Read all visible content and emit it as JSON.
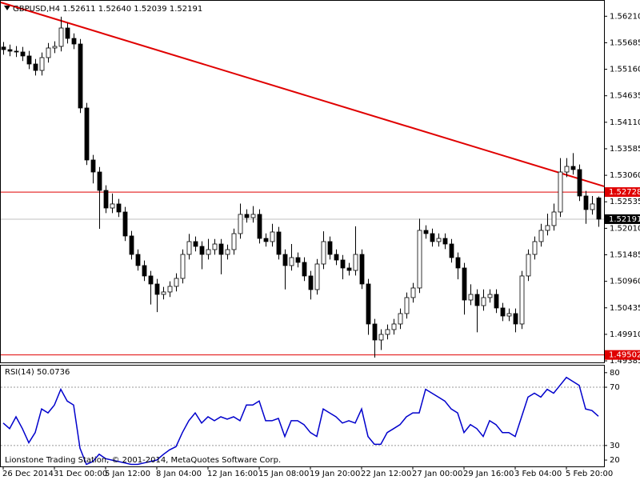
{
  "chart_data": [
    {
      "type": "candlestick",
      "title": "GBPUSD,H4  1.52611 1.52640 1.52039 1.52191",
      "categories": [
        "26 Dec 2014",
        null,
        null,
        null,
        null,
        null,
        null,
        null,
        "31 Dec 00:00",
        null,
        null,
        null,
        null,
        null,
        null,
        null,
        "5 Jan 12:00",
        null,
        null,
        null,
        null,
        null,
        null,
        null,
        "8 Jan 04:00",
        null,
        null,
        null,
        null,
        null,
        null,
        null,
        "12 Jan 16:00",
        null,
        null,
        null,
        null,
        null,
        null,
        null,
        "15 Jan 08:00",
        null,
        null,
        null,
        null,
        null,
        null,
        null,
        "19 Jan 20:00",
        null,
        null,
        null,
        null,
        null,
        null,
        null,
        "22 Jan 12:00",
        null,
        null,
        null,
        null,
        null,
        null,
        null,
        "27 Jan 00:00",
        null,
        null,
        null,
        null,
        null,
        null,
        null,
        "29 Jan 16:00",
        null,
        null,
        null,
        null,
        null,
        null,
        null,
        "3 Feb 04:00",
        null,
        null,
        null,
        null,
        null,
        null,
        null,
        "5 Feb 20:00",
        null,
        null,
        null,
        null,
        null
      ],
      "ohlc": [
        [
          1.556,
          1.557,
          1.55449,
          1.55549
        ],
        [
          1.55549,
          1.55649,
          1.55418,
          1.55518
        ],
        [
          1.55518,
          1.55618,
          1.55402,
          1.55502
        ],
        [
          1.55502,
          1.55602,
          1.55323,
          1.55423
        ],
        [
          1.55423,
          1.55523,
          1.55164,
          1.55264
        ],
        [
          1.55264,
          1.55364,
          1.55037,
          1.55137
        ],
        [
          1.55137,
          1.55491,
          1.55037,
          1.55391
        ],
        [
          1.55391,
          1.55681,
          1.55291,
          1.55581
        ],
        [
          1.55581,
          1.55713,
          1.55481,
          1.55613
        ],
        [
          1.55613,
          1.562,
          1.55513,
          1.55977
        ],
        [
          1.55977,
          1.56077,
          1.55671,
          1.55771
        ],
        [
          1.55771,
          1.55871,
          1.5556,
          1.5566
        ],
        [
          1.5566,
          1.5576,
          1.54293,
          1.54393
        ],
        [
          1.54393,
          1.54493,
          1.53263,
          1.53363
        ],
        [
          1.53363,
          1.53463,
          1.529,
          1.53125
        ],
        [
          1.53125,
          1.53225,
          1.52,
          1.52761
        ],
        [
          1.52761,
          1.52861,
          1.52312,
          1.52412
        ],
        [
          1.52412,
          1.527,
          1.52312,
          1.52492
        ],
        [
          1.52492,
          1.52592,
          1.52233,
          1.52333
        ],
        [
          1.52333,
          1.52433,
          1.51758,
          1.51858
        ],
        [
          1.51858,
          1.51958,
          1.51393,
          1.51493
        ],
        [
          1.51493,
          1.51593,
          1.51172,
          1.51272
        ],
        [
          1.51272,
          1.51372,
          1.50966,
          1.51066
        ],
        [
          1.51066,
          1.51166,
          1.505,
          1.50907
        ],
        [
          1.50907,
          1.51007,
          1.5035,
          1.50701
        ],
        [
          1.50701,
          1.50849,
          1.50601,
          1.50749
        ],
        [
          1.50749,
          1.5096,
          1.50649,
          1.5086
        ],
        [
          1.5086,
          1.51118,
          1.5076,
          1.51018
        ],
        [
          1.51018,
          1.51593,
          1.50918,
          1.51493
        ],
        [
          1.51493,
          1.519,
          1.51393,
          1.51747
        ],
        [
          1.51747,
          1.51847,
          1.51552,
          1.51652
        ],
        [
          1.51652,
          1.51752,
          1.512,
          1.51493
        ],
        [
          1.51493,
          1.518,
          1.51393,
          1.51588
        ],
        [
          1.51588,
          1.51799,
          1.51488,
          1.51699
        ],
        [
          1.51699,
          1.51799,
          1.511,
          1.51493
        ],
        [
          1.51493,
          1.51688,
          1.51393,
          1.51588
        ],
        [
          1.51588,
          1.52005,
          1.51488,
          1.51905
        ],
        [
          1.51905,
          1.525,
          1.51805,
          1.52286
        ],
        [
          1.52286,
          1.52386,
          1.52122,
          1.52222
        ],
        [
          1.52222,
          1.5245,
          1.52122,
          1.52286
        ],
        [
          1.52286,
          1.52386,
          1.5171,
          1.5181
        ],
        [
          1.5181,
          1.5191,
          1.51647,
          1.51747
        ],
        [
          1.51747,
          1.521,
          1.51647,
          1.51937
        ],
        [
          1.51937,
          1.52037,
          1.51393,
          1.51493
        ],
        [
          1.51493,
          1.51593,
          1.508,
          1.51272
        ],
        [
          1.51272,
          1.517,
          1.51172,
          1.5143
        ],
        [
          1.5143,
          1.5153,
          1.51235,
          1.51335
        ],
        [
          1.51335,
          1.51435,
          1.50966,
          1.51066
        ],
        [
          1.51066,
          1.51166,
          1.506,
          1.50796
        ],
        [
          1.50796,
          1.51403,
          1.50696,
          1.51303
        ],
        [
          1.51303,
          1.5195,
          1.51203,
          1.51747
        ],
        [
          1.51747,
          1.51847,
          1.51393,
          1.51493
        ],
        [
          1.51493,
          1.51593,
          1.51282,
          1.51382
        ],
        [
          1.51382,
          1.51482,
          1.51,
          1.51224
        ],
        [
          1.51224,
          1.51324,
          1.51076,
          1.51176
        ],
        [
          1.51176,
          1.5205,
          1.51076,
          1.51493
        ],
        [
          1.51493,
          1.51593,
          1.50807,
          1.50907
        ],
        [
          1.50907,
          1.51007,
          1.499,
          1.50115
        ],
        [
          1.50115,
          1.50215,
          1.4945,
          1.49798
        ],
        [
          1.49798,
          1.50009,
          1.496,
          1.49909
        ],
        [
          1.49909,
          1.50104,
          1.49809,
          1.50004
        ],
        [
          1.50004,
          1.50215,
          1.49904,
          1.50115
        ],
        [
          1.50115,
          1.50421,
          1.50015,
          1.50321
        ],
        [
          1.50321,
          1.50738,
          1.50221,
          1.50638
        ],
        [
          1.50638,
          1.50928,
          1.50538,
          1.50828
        ],
        [
          1.50828,
          1.522,
          1.50728,
          1.51969
        ],
        [
          1.51969,
          1.52069,
          1.51805,
          1.51905
        ],
        [
          1.51905,
          1.52005,
          1.51647,
          1.51747
        ],
        [
          1.51747,
          1.5191,
          1.51647,
          1.5181
        ],
        [
          1.5181,
          1.5191,
          1.51599,
          1.51699
        ],
        [
          1.51699,
          1.51799,
          1.5133,
          1.5143
        ],
        [
          1.5143,
          1.5153,
          1.51,
          1.51224
        ],
        [
          1.51224,
          1.51324,
          1.503,
          1.5059
        ],
        [
          1.5059,
          1.509,
          1.5049,
          1.50701
        ],
        [
          1.50701,
          1.50801,
          1.4995,
          1.50479
        ],
        [
          1.50479,
          1.508,
          1.50379,
          1.50638
        ],
        [
          1.50638,
          1.50801,
          1.50538,
          1.50701
        ],
        [
          1.50701,
          1.50801,
          1.50332,
          1.50432
        ],
        [
          1.50432,
          1.50532,
          1.50173,
          1.50273
        ],
        [
          1.50273,
          1.50421,
          1.50173,
          1.50321
        ],
        [
          1.50321,
          1.50421,
          1.4995,
          1.50115
        ],
        [
          1.50115,
          1.51166,
          1.50015,
          1.51066
        ],
        [
          1.51066,
          1.51593,
          1.50966,
          1.51493
        ],
        [
          1.51493,
          1.51847,
          1.51393,
          1.51747
        ],
        [
          1.51747,
          1.521,
          1.51647,
          1.51969
        ],
        [
          1.51969,
          1.523,
          1.51869,
          1.52064
        ],
        [
          1.52064,
          1.525,
          1.51964,
          1.52333
        ],
        [
          1.52333,
          1.534,
          1.52233,
          1.53125
        ],
        [
          1.53125,
          1.534,
          1.53025,
          1.53236
        ],
        [
          1.53236,
          1.535,
          1.53073,
          1.53173
        ],
        [
          1.53173,
          1.53273,
          1.5255,
          1.5265
        ],
        [
          1.5265,
          1.5275,
          1.521,
          1.52381
        ],
        [
          1.52381,
          1.5265,
          1.52281,
          1.52492
        ],
        [
          1.52611,
          1.5264,
          1.52039,
          1.52191
        ]
      ],
      "bull_color": "#ffffff",
      "bear_color": "#000000",
      "wick_color": "#000000",
      "ylim": [
        1.4937,
        1.565
      ],
      "yticks": [
        {
          "value": 1.5621,
          "label": "1.56210"
        },
        {
          "value": 1.55685,
          "label": "1.55685"
        },
        {
          "value": 1.5516,
          "label": "1.55160"
        },
        {
          "value": 1.54635,
          "label": "1.54635"
        },
        {
          "value": 1.5411,
          "label": "1.54110"
        },
        {
          "value": 1.53585,
          "label": "1.53585"
        },
        {
          "value": 1.5306,
          "label": "1.53060"
        },
        {
          "value": 1.52535,
          "label": "1.52535"
        },
        {
          "value": 1.5201,
          "label": "1.52010"
        },
        {
          "value": 1.51485,
          "label": "1.51485"
        },
        {
          "value": 1.5096,
          "label": "1.50960"
        },
        {
          "value": 1.50435,
          "label": "1.50435"
        },
        {
          "value": 1.4991,
          "label": "1.49910"
        },
        {
          "value": 1.49385,
          "label": "1.49385"
        }
      ],
      "trendline": {
        "color": "#e00000",
        "x": [
          0,
          93
        ],
        "y": [
          1.56465,
          1.52875
        ]
      },
      "levels": [
        {
          "value": 1.52728,
          "color": "#e00000"
        },
        {
          "value": 1.49502,
          "color": "#e00000"
        }
      ],
      "current_price": {
        "value": 1.52191,
        "color": "#000000",
        "line_color": "#c0c0c0"
      }
    },
    {
      "type": "line",
      "title": "RSI(14) 50.0736",
      "color": "#0000cc",
      "values": [
        45.4,
        41.6,
        49.7,
        41.6,
        31.9,
        38.9,
        55.1,
        52.4,
        57.8,
        68.6,
        60.5,
        57.8,
        28.1,
        17,
        19,
        24,
        21,
        20,
        19,
        18,
        17,
        17,
        18,
        19,
        20,
        23.8,
        27,
        29.2,
        38.9,
        47,
        52.4,
        45.4,
        49.7,
        47,
        49.7,
        48.1,
        49.7,
        47,
        57.8,
        57.8,
        60.5,
        47,
        47,
        48.6,
        36.2,
        47,
        47,
        44.3,
        38.9,
        36.2,
        55.1,
        52.4,
        49.7,
        45.4,
        47,
        45.4,
        55.1,
        36.2,
        30.8,
        30.8,
        38.9,
        41.6,
        44.3,
        49.7,
        52.4,
        52.4,
        68.6,
        65.9,
        63.2,
        60.5,
        55.1,
        52.4,
        38.9,
        44.3,
        41.6,
        36.2,
        47,
        44.3,
        38.9,
        38.9,
        36.2,
        49.7,
        63.2,
        65.9,
        63.2,
        68.6,
        65.9,
        71.3,
        76.7,
        74,
        71.3,
        55.1,
        54,
        50.0736
      ],
      "ylim": [
        16.2,
        84.3
      ],
      "yticks": [
        80,
        70,
        30,
        20
      ],
      "levels": [
        70,
        30
      ]
    }
  ],
  "footer": "Lionstone Trading Station, © 2001-2014, MetaQuotes Software Corp."
}
